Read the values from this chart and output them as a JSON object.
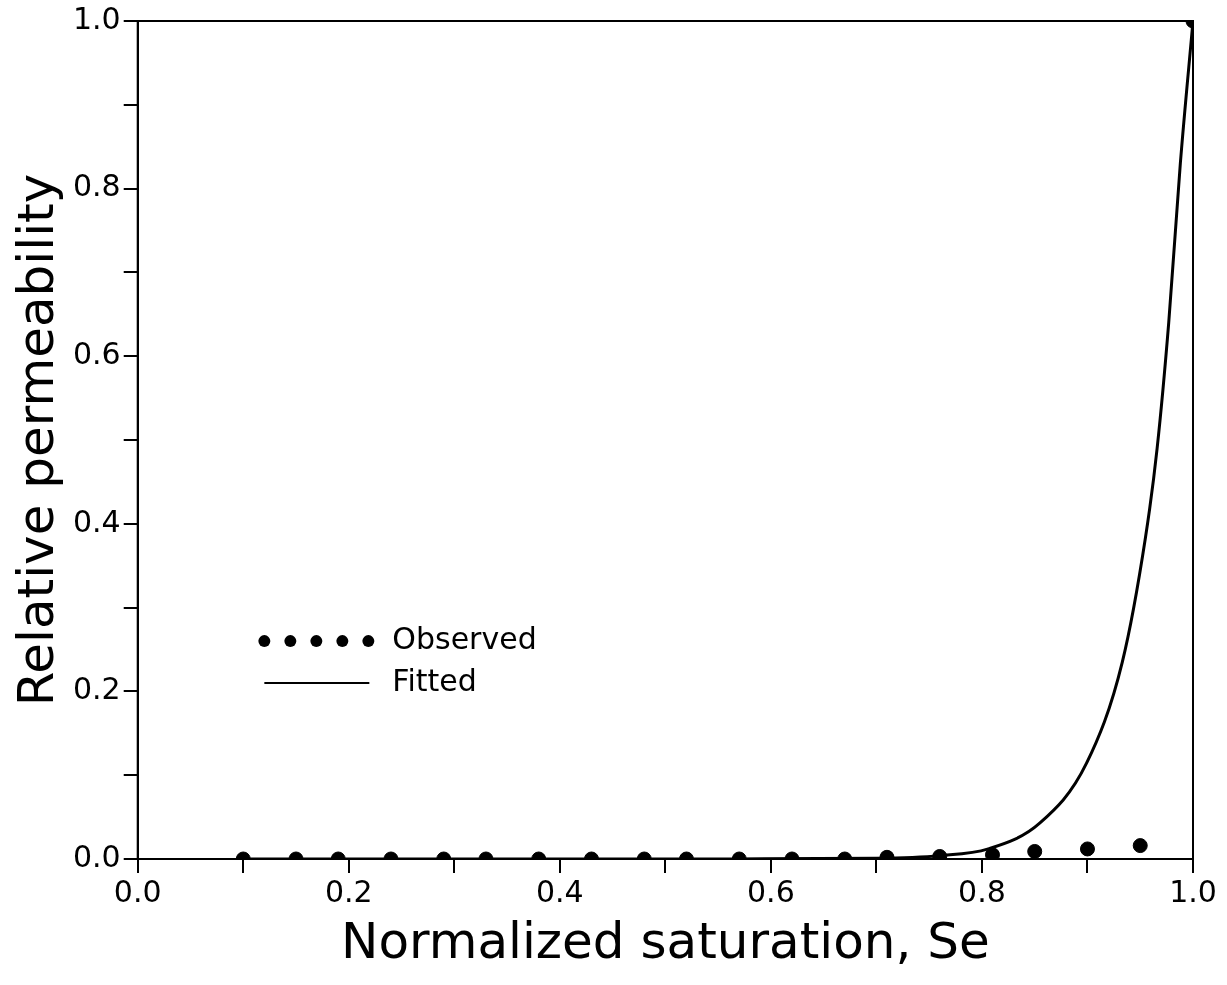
{
  "chart_data": {
    "type": "scatter",
    "xlabel": "Normalized saturation, Se",
    "ylabel": "Relative permeability",
    "xlim": [
      0,
      1
    ],
    "ylim": [
      0,
      1
    ],
    "xticks": [
      {
        "value": 0.0,
        "label": "0.0"
      },
      {
        "value": 0.1,
        "label": null
      },
      {
        "value": 0.2,
        "label": "0.2"
      },
      {
        "value": 0.3,
        "label": null
      },
      {
        "value": 0.4,
        "label": "0.4"
      },
      {
        "value": 0.5,
        "label": null
      },
      {
        "value": 0.6,
        "label": "0.6"
      },
      {
        "value": 0.7,
        "label": null
      },
      {
        "value": 0.8,
        "label": "0.8"
      },
      {
        "value": 0.9,
        "label": null
      },
      {
        "value": 1.0,
        "label": "1.0"
      }
    ],
    "yticks": [
      {
        "value": 0.0,
        "label": "0.0"
      },
      {
        "value": 0.1,
        "label": null
      },
      {
        "value": 0.2,
        "label": "0.2"
      },
      {
        "value": 0.3,
        "label": null
      },
      {
        "value": 0.4,
        "label": "0.4"
      },
      {
        "value": 0.5,
        "label": null
      },
      {
        "value": 0.6,
        "label": "0.6"
      },
      {
        "value": 0.7,
        "label": null
      },
      {
        "value": 0.8,
        "label": "0.8"
      },
      {
        "value": 0.9,
        "label": null
      },
      {
        "value": 1.0,
        "label": "1.0"
      }
    ],
    "grid": false,
    "legend": "bottom left",
    "series": [
      {
        "name": "Observed",
        "type": "scatter",
        "marker": "circle",
        "color": "#000000",
        "x": [
          0.1,
          0.15,
          0.19,
          0.24,
          0.29,
          0.33,
          0.38,
          0.43,
          0.48,
          0.52,
          0.57,
          0.62,
          0.67,
          0.71,
          0.76,
          0.81,
          0.85,
          0.9,
          0.95,
          1.0
        ],
        "values": [
          0,
          0,
          0,
          0,
          0,
          0,
          0,
          0,
          0,
          0,
          0,
          0,
          0,
          0.002,
          0.003,
          0.005,
          0.009,
          0.012,
          0.016,
          1.0
        ]
      },
      {
        "name": "Fitted",
        "type": "line",
        "marker": "none",
        "line_style": "solid",
        "color": "#000000",
        "x": [
          0.1,
          0.5,
          0.7,
          0.76,
          0.806,
          0.855,
          0.899,
          0.933,
          0.955,
          0.966,
          0.977,
          0.988,
          1.0
        ],
        "values": [
          0,
          0,
          0.001,
          0.004,
          0.012,
          0.043,
          0.114,
          0.235,
          0.384,
          0.49,
          0.64,
          0.83,
          1.0
        ]
      }
    ]
  }
}
